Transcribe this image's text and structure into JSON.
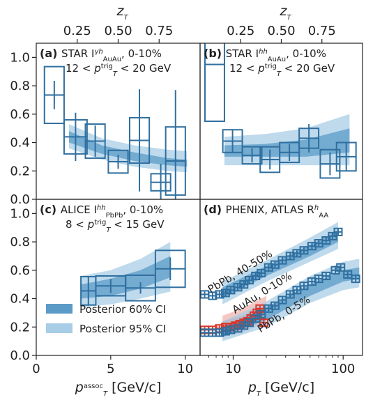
{
  "chart_data": {
    "type": "scatter",
    "colors": {
      "blue": "#2f6f9f",
      "band60": "#5b9bc8",
      "band95": "#a8cde6",
      "red": "#d9372b",
      "redband60": "#e8706a",
      "redband95": "#f2b3ad"
    },
    "legend": {
      "items": [
        {
          "label": "Posterior 60% CI",
          "kind": "band60"
        },
        {
          "label": "Posterior 95% CI",
          "kind": "band95"
        }
      ],
      "placement": "lower-left of panel (c)"
    },
    "panels": [
      {
        "id": "a",
        "letter": "(a)",
        "label": "STAR I",
        "label_sup": "γh",
        "label_sub": "AuAu",
        "label_tail": ", 0-10%",
        "line2": "12 < p",
        "line2_sup": "trig",
        "line2_sub": "T",
        "line2_tail": " < 20 GeV",
        "top_axis": {
          "title": "z_T",
          "ticks": [
            "0.25",
            "0.50",
            "0.75"
          ]
        },
        "xlim": [
          0,
          1
        ],
        "ylim": [
          0,
          1.1
        ],
        "points": [
          {
            "x": 0.11,
            "y": 0.735,
            "xerr": 0.06,
            "yerr": 0.1,
            "sys": 0.2
          },
          {
            "x": 0.24,
            "y": 0.44,
            "xerr": 0.07,
            "yerr": 0.17,
            "sys": 0.12
          },
          {
            "x": 0.36,
            "y": 0.41,
            "xerr": 0.06,
            "yerr": 0.11,
            "sys": 0.12
          },
          {
            "x": 0.5,
            "y": 0.265,
            "xerr": 0.06,
            "yerr": 0.05,
            "sys": 0.08
          },
          {
            "x": 0.63,
            "y": 0.415,
            "xerr": 0.06,
            "yerr": 0.36,
            "sys": 0.16
          },
          {
            "x": 0.76,
            "y": 0.12,
            "xerr": 0.06,
            "yerr": 0.13,
            "sys": 0.06
          },
          {
            "x": 0.85,
            "y": 0.27,
            "xerr": 0.06,
            "yerr": 0.5,
            "sys": 0.24
          }
        ],
        "band": {
          "x": [
            0.2,
            0.4,
            0.6,
            0.8,
            0.92
          ],
          "lo60": [
            0.4,
            0.32,
            0.27,
            0.24,
            0.23
          ],
          "hi60": [
            0.48,
            0.38,
            0.33,
            0.29,
            0.28
          ],
          "lo95": [
            0.36,
            0.28,
            0.23,
            0.2,
            0.19
          ],
          "hi95": [
            0.53,
            0.43,
            0.38,
            0.35,
            0.34
          ]
        }
      },
      {
        "id": "b",
        "letter": "(b)",
        "label": "STAR I",
        "label_sup": "hh",
        "label_sub": "AuAu",
        "label_tail": ", 0-10%",
        "line2": "12 < p",
        "line2_sup": "trig",
        "line2_sub": "T",
        "line2_tail": " < 20 GeV",
        "top_axis": {
          "title": "z_T",
          "ticks": [
            "0.25",
            "0.50",
            "0.75"
          ]
        },
        "xlim": [
          0,
          1
        ],
        "ylim": [
          0,
          1.1
        ],
        "points": [
          {
            "x": 0.09,
            "y": 0.95,
            "xerr": 0.06,
            "yerr": 0.0,
            "sys": 0.4
          },
          {
            "x": 0.2,
            "y": 0.41,
            "xerr": 0.06,
            "yerr": 0.08,
            "sys": 0.08
          },
          {
            "x": 0.32,
            "y": 0.31,
            "xerr": 0.06,
            "yerr": 0.05,
            "sys": 0.06
          },
          {
            "x": 0.43,
            "y": 0.28,
            "xerr": 0.06,
            "yerr": 0.07,
            "sys": 0.09
          },
          {
            "x": 0.55,
            "y": 0.33,
            "xerr": 0.06,
            "yerr": 0.06,
            "sys": 0.07
          },
          {
            "x": 0.67,
            "y": 0.43,
            "xerr": 0.06,
            "yerr": 0.1,
            "sys": 0.07
          },
          {
            "x": 0.8,
            "y": 0.25,
            "xerr": 0.06,
            "yerr": 0.08,
            "sys": 0.1
          },
          {
            "x": 0.9,
            "y": 0.3,
            "xerr": 0.06,
            "yerr": 0.1,
            "sys": 0.1
          }
        ],
        "band": {
          "x": [
            0.15,
            0.4,
            0.65,
            0.92
          ],
          "lo60": [
            0.3,
            0.3,
            0.3,
            0.33
          ],
          "hi60": [
            0.38,
            0.39,
            0.42,
            0.5
          ],
          "lo95": [
            0.24,
            0.24,
            0.24,
            0.24
          ],
          "hi95": [
            0.44,
            0.46,
            0.5,
            0.6
          ]
        }
      },
      {
        "id": "c",
        "letter": "(c)",
        "label": "ALICE I",
        "label_sup": "hh",
        "label_sub": "PbPb",
        "label_tail": ", 0-10%",
        "line2": "8 < p",
        "line2_sup": "trig",
        "line2_sub": "T",
        "line2_tail": " < 15 GeV",
        "bottom_axis": {
          "title": "p",
          "title_sup": "assoc",
          "title_sub": "T",
          "title_tail": " [GeV/c]",
          "ticks": [
            "0",
            "5",
            "10"
          ],
          "tick_values": [
            0,
            5,
            10
          ]
        },
        "xlim": [
          0,
          11
        ],
        "ylim": [
          0,
          1.1
        ],
        "points": [
          {
            "x": 3.5,
            "y": 0.455,
            "xerr": 0.5,
            "yerr": 0.1,
            "sys": 0.1
          },
          {
            "x": 5.0,
            "y": 0.49,
            "xerr": 1.0,
            "yerr": 0.05,
            "sys": 0.07
          },
          {
            "x": 7.0,
            "y": 0.475,
            "xerr": 1.0,
            "yerr": 0.04,
            "sys": 0.09
          },
          {
            "x": 9.0,
            "y": 0.61,
            "xerr": 1.0,
            "yerr": 0.08,
            "sys": 0.13
          }
        ],
        "band": {
          "x": [
            3.0,
            5.0,
            7.0,
            9.0
          ],
          "lo60": [
            0.4,
            0.42,
            0.47,
            0.55
          ],
          "hi60": [
            0.5,
            0.54,
            0.6,
            0.7
          ],
          "lo95": [
            0.34,
            0.36,
            0.4,
            0.45
          ],
          "hi95": [
            0.56,
            0.6,
            0.68,
            0.8
          ]
        }
      },
      {
        "id": "d",
        "letter": "(d)",
        "label": "PHENIX, ATLAS R",
        "label_sup": "h",
        "label_sub": "AA",
        "label_tail": "",
        "bottom_axis": {
          "title": "p",
          "title_sub": "T",
          "title_tail": " [GeV/c]",
          "ticks": [
            "10",
            "100"
          ],
          "tick_values": [
            10,
            100
          ],
          "scale": "log"
        },
        "xlim": [
          5,
          150
        ],
        "ylim": [
          0,
          1.1
        ],
        "annotations": [
          {
            "text": "PbPb, 40-50%",
            "color": "#2f6f9f"
          },
          {
            "text": "AuAu, 0-10%",
            "color": "#d9372b"
          },
          {
            "text": "PbPb, 0-5%",
            "color": "#2f6f9f"
          }
        ],
        "series": [
          {
            "name": "PbPb, 40-50%",
            "color": "#2f6f9f",
            "points": [
              [
                5.5,
                0.43
              ],
              [
                6.5,
                0.42
              ],
              [
                7.5,
                0.43
              ],
              [
                8.5,
                0.44
              ],
              [
                9.5,
                0.46
              ],
              [
                11,
                0.48
              ],
              [
                12.5,
                0.5
              ],
              [
                14,
                0.53
              ],
              [
                16,
                0.56
              ],
              [
                18,
                0.58
              ],
              [
                21,
                0.62
              ],
              [
                24,
                0.64
              ],
              [
                28,
                0.67
              ],
              [
                33,
                0.7
              ],
              [
                38,
                0.72
              ],
              [
                44,
                0.74
              ],
              [
                52,
                0.77
              ],
              [
                60,
                0.79
              ],
              [
                70,
                0.81
              ],
              [
                80,
                0.84
              ],
              [
                90,
                0.87
              ]
            ],
            "band": {
              "x": [
                8,
                20,
                50,
                90
              ],
              "lo60": [
                0.4,
                0.56,
                0.7,
                0.8
              ],
              "hi60": [
                0.48,
                0.63,
                0.78,
                0.88
              ],
              "lo95": [
                0.36,
                0.52,
                0.66,
                0.75
              ],
              "hi95": [
                0.52,
                0.67,
                0.83,
                0.94
              ]
            }
          },
          {
            "name": "AuAu, 0-10%",
            "color": "#d9372b",
            "points": [
              [
                5.5,
                0.18
              ],
              [
                6.5,
                0.18
              ],
              [
                7.5,
                0.19
              ],
              [
                8.5,
                0.2
              ],
              [
                9.5,
                0.2
              ],
              [
                10.5,
                0.21
              ],
              [
                11.5,
                0.22
              ],
              [
                12.5,
                0.23
              ],
              [
                13.5,
                0.24
              ],
              [
                14.5,
                0.26
              ],
              [
                15.5,
                0.28
              ],
              [
                16.5,
                0.3
              ],
              [
                17.5,
                0.33
              ],
              [
                19,
                0.23
              ]
            ],
            "band": {
              "x": [
                8,
                12,
                16,
                20
              ],
              "lo60": [
                0.17,
                0.2,
                0.24,
                0.27
              ],
              "hi60": [
                0.24,
                0.28,
                0.32,
                0.36
              ],
              "lo95": [
                0.13,
                0.16,
                0.2,
                0.23
              ],
              "hi95": [
                0.28,
                0.33,
                0.38,
                0.42
              ]
            }
          },
          {
            "name": "PbPb, 0-5%",
            "color": "#2f6f9f",
            "points": [
              [
                5.5,
                0.16
              ],
              [
                6.5,
                0.16
              ],
              [
                7.5,
                0.16
              ],
              [
                8.5,
                0.17
              ],
              [
                9.5,
                0.18
              ],
              [
                11,
                0.19
              ],
              [
                12.5,
                0.21
              ],
              [
                14,
                0.23
              ],
              [
                16,
                0.26
              ],
              [
                18,
                0.29
              ],
              [
                21,
                0.33
              ],
              [
                24,
                0.35
              ],
              [
                28,
                0.39
              ],
              [
                33,
                0.43
              ],
              [
                38,
                0.46
              ],
              [
                44,
                0.49
              ],
              [
                52,
                0.52
              ],
              [
                60,
                0.54
              ],
              [
                70,
                0.56
              ],
              [
                85,
                0.6
              ],
              [
                95,
                0.62
              ],
              [
                110,
                0.57
              ],
              [
                130,
                0.54
              ]
            ],
            "band": {
              "x": [
                8,
                20,
                50,
                100,
                140
              ],
              "lo60": [
                0.13,
                0.25,
                0.42,
                0.52,
                0.54
              ],
              "hi60": [
                0.2,
                0.34,
                0.5,
                0.6,
                0.62
              ],
              "lo95": [
                0.1,
                0.2,
                0.37,
                0.46,
                0.48
              ],
              "hi95": [
                0.24,
                0.38,
                0.56,
                0.66,
                0.68
              ]
            }
          }
        ]
      }
    ],
    "y_axis": {
      "ticks": [
        "0.0",
        "0.2",
        "0.4",
        "0.6",
        "0.8",
        "1.0"
      ],
      "tick_values": [
        0,
        0.2,
        0.4,
        0.6,
        0.8,
        1.0
      ]
    }
  }
}
